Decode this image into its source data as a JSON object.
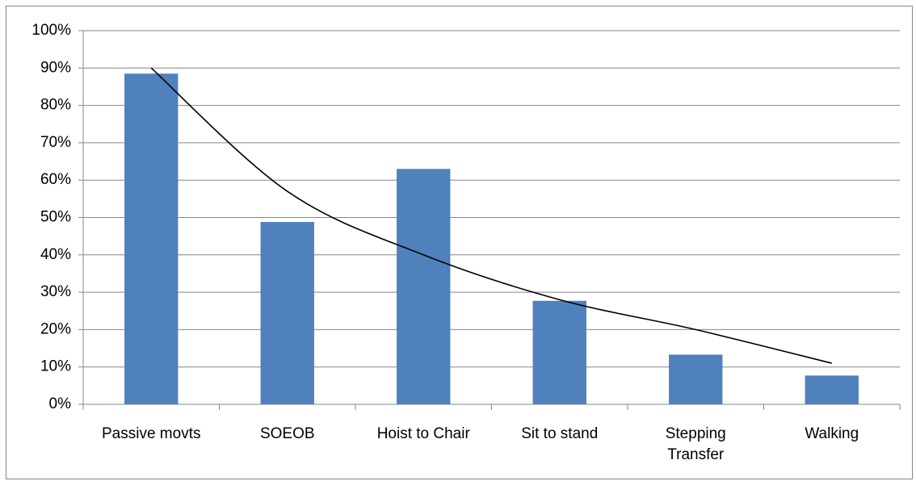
{
  "chart_data": {
    "type": "bar",
    "categories": [
      "Passive movts",
      "SOEOB",
      "Hoist to Chair",
      "Sit to stand",
      "Stepping Transfer",
      "Walking"
    ],
    "values": [
      88.5,
      48.8,
      63,
      27.7,
      13.3,
      7.7
    ],
    "color": "#4f81bd",
    "trendline": {
      "values": [
        90,
        57,
        40,
        28,
        20,
        11
      ],
      "color": "#000000"
    },
    "ylim": [
      0,
      100
    ],
    "yticks": [
      {
        "value": 0,
        "label": "0%"
      },
      {
        "value": 10,
        "label": "10%"
      },
      {
        "value": 20,
        "label": "20%"
      },
      {
        "value": 30,
        "label": "30%"
      },
      {
        "value": 40,
        "label": "40%"
      },
      {
        "value": 50,
        "label": "50%"
      },
      {
        "value": 60,
        "label": "60%"
      },
      {
        "value": 70,
        "label": "70%"
      },
      {
        "value": 80,
        "label": "80%"
      },
      {
        "value": 90,
        "label": "90%"
      },
      {
        "value": 100,
        "label": "100%"
      }
    ],
    "grid": true
  }
}
